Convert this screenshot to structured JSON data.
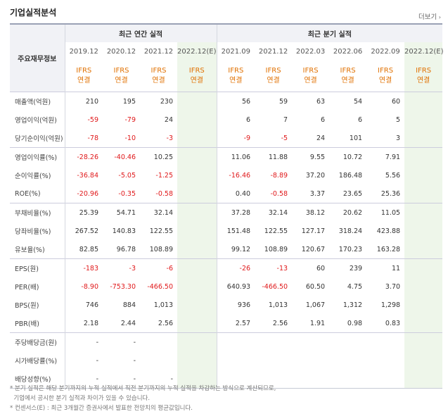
{
  "title": "기업실적분석",
  "more_label": "더보기",
  "header": {
    "row_head": "주요재무정보",
    "annual_group": "최근 연간 실적",
    "quarter_group": "최근 분기 실적",
    "periods": [
      "2019.12",
      "2020.12",
      "2021.12",
      "2022.12(E)",
      "2021.09",
      "2021.12",
      "2022.03",
      "2022.06",
      "2022.09",
      "2022.12(E)"
    ],
    "ifrs": "IFRS",
    "basis": "연결"
  },
  "rows": [
    {
      "label": "매출액(억원)",
      "values": [
        "210",
        "195",
        "230",
        "",
        "56",
        "59",
        "63",
        "54",
        "60",
        ""
      ]
    },
    {
      "label": "영업이익(억원)",
      "values": [
        "-59",
        "-79",
        "24",
        "",
        "6",
        "7",
        "6",
        "6",
        "5",
        ""
      ]
    },
    {
      "label": "당기순이익(억원)",
      "values": [
        "-78",
        "-10",
        "-3",
        "",
        "-9",
        "-5",
        "24",
        "101",
        "3",
        ""
      ]
    },
    {
      "label": "영업이익률(%)",
      "values": [
        "-28.26",
        "-40.46",
        "10.25",
        "",
        "11.06",
        "11.88",
        "9.55",
        "10.72",
        "7.91",
        ""
      ]
    },
    {
      "label": "순이익률(%)",
      "values": [
        "-36.84",
        "-5.05",
        "-1.25",
        "",
        "-16.46",
        "-8.89",
        "37.20",
        "186.48",
        "5.56",
        ""
      ]
    },
    {
      "label": "ROE(%)",
      "values": [
        "-20.96",
        "-0.35",
        "-0.58",
        "",
        "0.40",
        "-0.58",
        "3.37",
        "23.65",
        "25.36",
        ""
      ]
    },
    {
      "label": "부채비율(%)",
      "values": [
        "25.39",
        "54.71",
        "32.14",
        "",
        "37.28",
        "32.14",
        "38.12",
        "20.62",
        "11.05",
        ""
      ]
    },
    {
      "label": "당좌비율(%)",
      "values": [
        "267.52",
        "140.83",
        "122.55",
        "",
        "151.48",
        "122.55",
        "127.17",
        "318.24",
        "423.88",
        ""
      ]
    },
    {
      "label": "유보율(%)",
      "values": [
        "82.85",
        "96.78",
        "108.89",
        "",
        "99.12",
        "108.89",
        "120.67",
        "170.23",
        "163.28",
        ""
      ]
    },
    {
      "label": "EPS(원)",
      "values": [
        "-183",
        "-3",
        "-6",
        "",
        "-26",
        "-13",
        "60",
        "239",
        "11",
        ""
      ]
    },
    {
      "label": "PER(배)",
      "values": [
        "-8.90",
        "-753.30",
        "-466.50",
        "",
        "640.93",
        "-466.50",
        "60.50",
        "4.75",
        "3.70",
        ""
      ]
    },
    {
      "label": "BPS(원)",
      "values": [
        "746",
        "884",
        "1,013",
        "",
        "936",
        "1,013",
        "1,067",
        "1,312",
        "1,298",
        ""
      ]
    },
    {
      "label": "PBR(배)",
      "values": [
        "2.18",
        "2.44",
        "2.56",
        "",
        "2.57",
        "2.56",
        "1.91",
        "0.98",
        "0.83",
        ""
      ]
    },
    {
      "label": "주당배당금(원)",
      "values": [
        "-",
        "-",
        "",
        "",
        "",
        "",
        "",
        "",
        "",
        ""
      ]
    },
    {
      "label": "시가배당률(%)",
      "values": [
        "-",
        "-",
        "",
        "",
        "",
        "",
        "",
        "",
        "",
        ""
      ]
    },
    {
      "label": "배당성향(%)",
      "values": [
        "-",
        "-",
        "-",
        "",
        "",
        "",
        "",
        "",
        "",
        ""
      ]
    }
  ],
  "notes": [
    "* 분기 실적은 해당 분기까지의 누적 실적에서 직전 분기까지의 누적 실적을 차감하는 방식으로 계산되므로,",
    "  기업에서 공시한 분기 실적과 차이가 있을 수 있습니다.",
    "* 컨센서스(E) : 최근 3개월간 증권사에서 발표한 전망치의 평균값입니다."
  ]
}
